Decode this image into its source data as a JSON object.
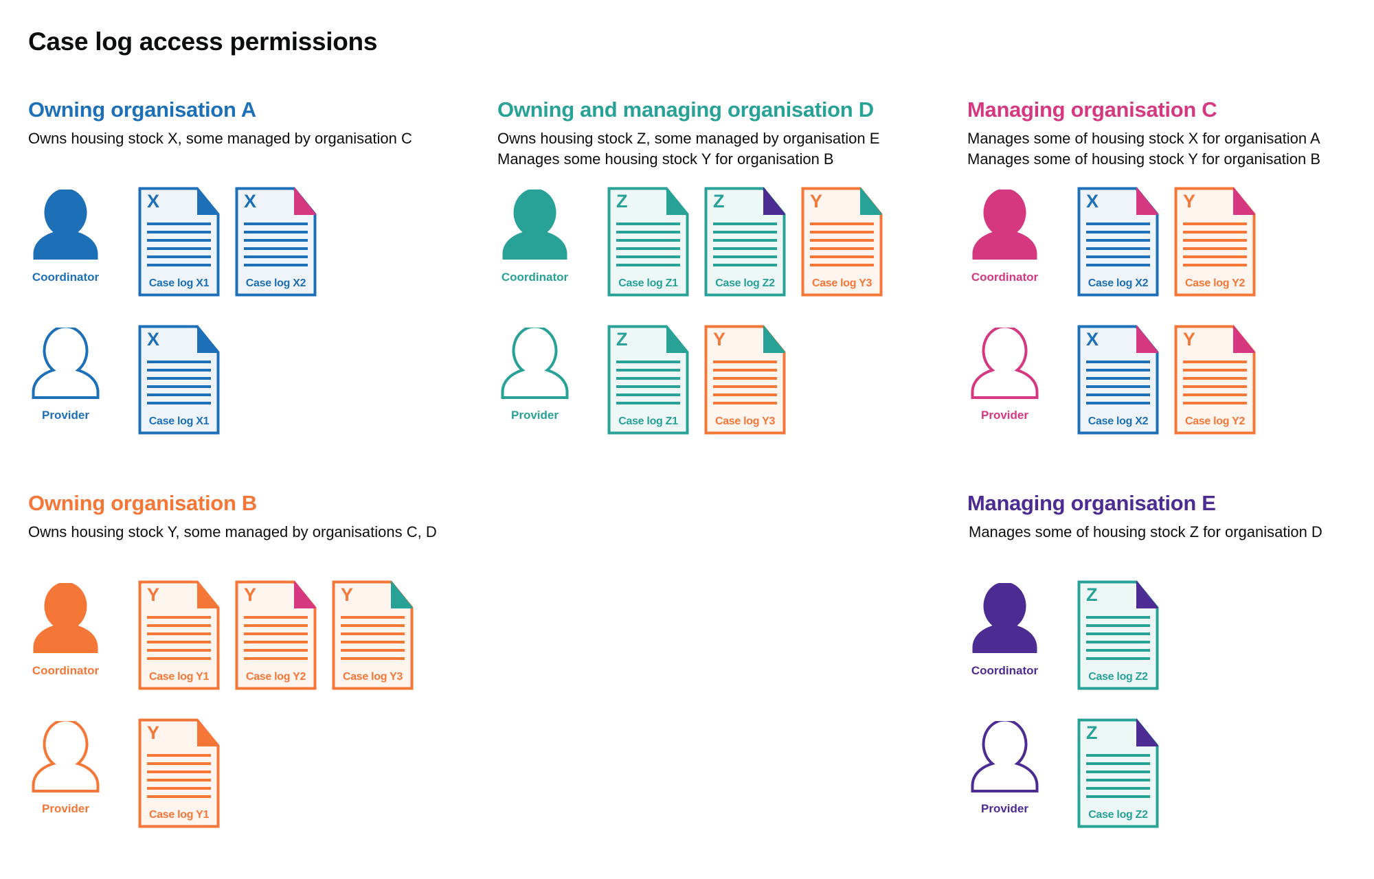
{
  "title": "Case log access permissions",
  "colors": {
    "A": "#1d70b8",
    "B": "#f47738",
    "C": "#d53880",
    "D": "#28a197",
    "E": "#4c2c92"
  },
  "stock_colors": {
    "X": "#1d70b8",
    "Y": "#f47738",
    "Z": "#28a197"
  },
  "stock_tints": {
    "X": "#eef4fa",
    "Y": "#fef5ef",
    "Z": "#edf7f6"
  },
  "sections": [
    {
      "id": "org-a",
      "title": "Owning organisation A",
      "color": "#1d70b8",
      "desc": [
        "Owns housing stock X, some managed by organisation C"
      ],
      "roles": [
        {
          "label": "Coordinator",
          "filled": true,
          "docs": [
            {
              "stock": "X",
              "label": "Case log X1",
              "corner": "#1d70b8"
            },
            {
              "stock": "X",
              "label": "Case log X2",
              "corner": "#d53880"
            }
          ]
        },
        {
          "label": "Provider",
          "filled": false,
          "docs": [
            {
              "stock": "X",
              "label": "Case log X1",
              "corner": "#1d70b8"
            }
          ]
        }
      ]
    },
    {
      "id": "org-d",
      "title": "Owning and managing organisation D",
      "color": "#28a197",
      "desc": [
        "Owns housing stock Z, some managed by organisation E",
        "Manages some housing stock Y for organisation B"
      ],
      "roles": [
        {
          "label": "Coordinator",
          "filled": true,
          "docs": [
            {
              "stock": "Z",
              "label": "Case log Z1",
              "corner": "#28a197"
            },
            {
              "stock": "Z",
              "label": "Case log Z2",
              "corner": "#4c2c92"
            },
            {
              "stock": "Y",
              "label": "Case log Y3",
              "corner": "#28a197"
            }
          ]
        },
        {
          "label": "Provider",
          "filled": false,
          "docs": [
            {
              "stock": "Z",
              "label": "Case log Z1",
              "corner": "#28a197"
            },
            {
              "stock": "Y",
              "label": "Case log Y3",
              "corner": "#28a197"
            }
          ]
        }
      ]
    },
    {
      "id": "org-c",
      "title": "Managing organisation C",
      "color": "#d53880",
      "desc": [
        "Manages some of housing stock X for organisation A",
        "Manages some of housing stock Y for organisation B"
      ],
      "roles": [
        {
          "label": "Coordinator",
          "filled": true,
          "docs": [
            {
              "stock": "X",
              "label": "Case log X2",
              "corner": "#d53880"
            },
            {
              "stock": "Y",
              "label": "Case log Y2",
              "corner": "#d53880"
            }
          ]
        },
        {
          "label": "Provider",
          "filled": false,
          "docs": [
            {
              "stock": "X",
              "label": "Case log X2",
              "corner": "#d53880"
            },
            {
              "stock": "Y",
              "label": "Case log Y2",
              "corner": "#d53880"
            }
          ]
        }
      ]
    },
    {
      "id": "org-b",
      "title": "Owning organisation B",
      "color": "#f47738",
      "desc": [
        "Owns housing stock Y, some managed by organisations C, D"
      ],
      "roles": [
        {
          "label": "Coordinator",
          "filled": true,
          "docs": [
            {
              "stock": "Y",
              "label": "Case log Y1",
              "corner": "#f47738"
            },
            {
              "stock": "Y",
              "label": "Case log Y2",
              "corner": "#d53880"
            },
            {
              "stock": "Y",
              "label": "Case log Y3",
              "corner": "#28a197"
            }
          ]
        },
        {
          "label": "Provider",
          "filled": false,
          "docs": [
            {
              "stock": "Y",
              "label": "Case log Y1",
              "corner": "#f47738"
            }
          ]
        }
      ]
    },
    {
      "id": "org-e",
      "title": "Managing organisation E",
      "color": "#4c2c92",
      "desc": [
        "Manages some of housing stock Z for organisation D"
      ],
      "roles": [
        {
          "label": "Coordinator",
          "filled": true,
          "docs": [
            {
              "stock": "Z",
              "label": "Case log Z2",
              "corner": "#4c2c92"
            }
          ]
        },
        {
          "label": "Provider",
          "filled": false,
          "docs": [
            {
              "stock": "Z",
              "label": "Case log Z2",
              "corner": "#4c2c92"
            }
          ]
        }
      ]
    }
  ]
}
